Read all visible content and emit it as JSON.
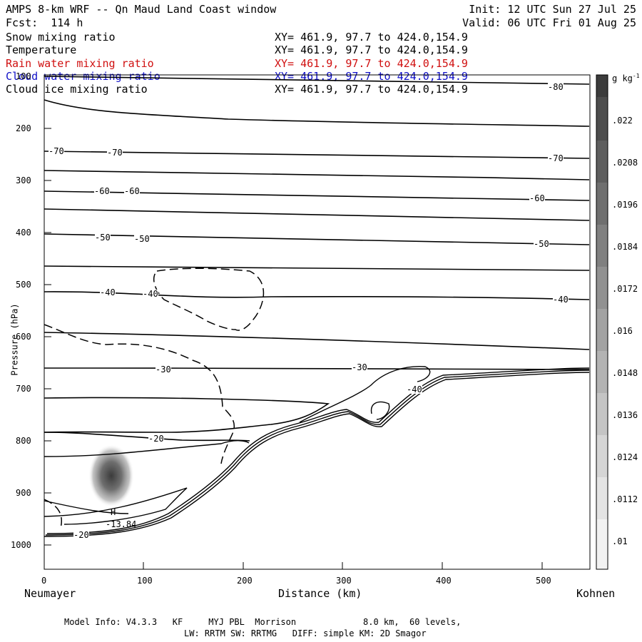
{
  "header": {
    "title": "AMPS 8-km WRF -- Qn Maud Land Coast window",
    "forecast": "Fcst:  114 h",
    "init": "Init: 12 UTC Sun 27 Jul 25",
    "valid": "Valid: 06 UTC Fri 01 Aug 25"
  },
  "fields": [
    {
      "name": "Snow mixing ratio",
      "xy": "XY= 461.9, 97.7 to 424.0,154.9",
      "color": "#000000"
    },
    {
      "name": "Temperature",
      "xy": "XY= 461.9, 97.7 to 424.0,154.9",
      "color": "#000000"
    },
    {
      "name": "Rain water mixing ratio",
      "xy": "XY= 461.9, 97.7 to 424.0,154.9",
      "color": "#d01010"
    },
    {
      "name": "Cloud water mixing ratio",
      "xy": "XY= 461.9, 97.7 to 424.0,154.9",
      "color": "#1010c8"
    },
    {
      "name": "Cloud ice mixing ratio",
      "xy": "XY= 461.9, 97.7 to 424.0,154.9",
      "color": "#000000"
    }
  ],
  "footer": {
    "line1": "Model Info: V4.3.3   KF     MYJ PBL  Morrison             8.0 km,  60 levels,",
    "line2": "LW: RRTM SW: RRTMG   DIFF: simple KM: 2D Smagor"
  },
  "chart_data": {
    "type": "contour",
    "xlabel": "Distance (km)",
    "ylabel": "Pressure (hPa)",
    "xlim": [
      0,
      550
    ],
    "ylim": [
      1050,
      100
    ],
    "x_ticks": [
      0,
      100,
      200,
      300,
      400,
      500
    ],
    "y_ticks": [
      100,
      200,
      300,
      400,
      500,
      600,
      700,
      800,
      900,
      1000
    ],
    "x_end_labels": {
      "left": "Neumayer",
      "right": "Kohnen"
    },
    "colorbar": {
      "unit": "g kg",
      "unit_exponent": "-1",
      "ticks": [
        ".022",
        ".0208",
        ".0196",
        ".0184",
        ".0172",
        ".016",
        ".0148",
        ".0136",
        ".0124",
        ".0112",
        ".01"
      ]
    },
    "temperature_labels": [
      "-80",
      "-70",
      "-70",
      "-70",
      "-60",
      "-60",
      "-60",
      "-50",
      "-50",
      "-50",
      "-40",
      "-40",
      "-40",
      "-40",
      "-30",
      "-30",
      "-20",
      "-20"
    ],
    "extremum": {
      "marker": "H",
      "value": "-13.84"
    }
  }
}
